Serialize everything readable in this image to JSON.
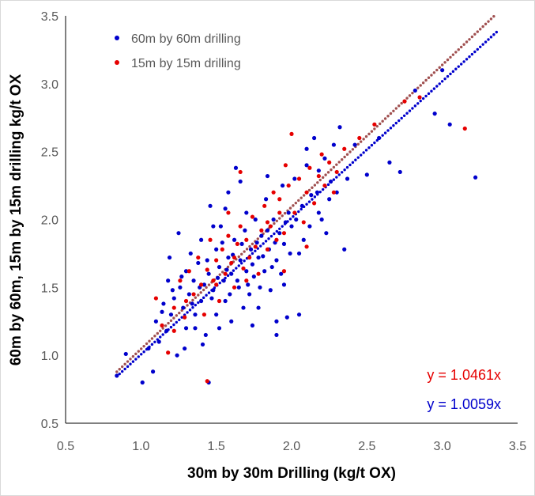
{
  "chart_data": {
    "type": "scatter",
    "xlabel": "30m by 30m Drilling (kg/t OX)",
    "ylabel": "60m by 60m, 15m by 15m drilling kg/t OX",
    "xlim": [
      0.5,
      3.5
    ],
    "ylim": [
      0.5,
      3.5
    ],
    "x_ticks": [
      "0.5",
      "1.0",
      "1.5",
      "2.0",
      "2.5",
      "3.0",
      "3.5"
    ],
    "y_ticks": [
      "0.5",
      "1.0",
      "1.5",
      "2.0",
      "2.5",
      "3.0",
      "3.5"
    ],
    "grid": false,
    "legend_position": "top-left",
    "series": [
      {
        "name": "60m by 60m drilling",
        "color": "#0000cc",
        "points": [
          [
            0.84,
            0.85
          ],
          [
            0.9,
            1.01
          ],
          [
            1.01,
            0.8
          ],
          [
            1.08,
            0.88
          ],
          [
            1.05,
            1.05
          ],
          [
            1.1,
            1.25
          ],
          [
            1.12,
            1.1
          ],
          [
            1.15,
            1.38
          ],
          [
            1.17,
            1.18
          ],
          [
            1.18,
            1.55
          ],
          [
            1.19,
            1.72
          ],
          [
            1.2,
            1.3
          ],
          [
            1.22,
            1.42
          ],
          [
            1.24,
            1.0
          ],
          [
            1.25,
            1.9
          ],
          [
            1.26,
            1.5
          ],
          [
            1.28,
            1.35
          ],
          [
            1.3,
            1.62
          ],
          [
            1.3,
            1.2
          ],
          [
            1.32,
            1.45
          ],
          [
            1.33,
            1.75
          ],
          [
            1.35,
            1.55
          ],
          [
            1.36,
            1.3
          ],
          [
            1.38,
            1.68
          ],
          [
            1.4,
            1.4
          ],
          [
            1.4,
            1.85
          ],
          [
            1.42,
            1.52
          ],
          [
            1.43,
            1.15
          ],
          [
            1.45,
            1.6
          ],
          [
            1.45,
            0.8
          ],
          [
            1.46,
            2.1
          ],
          [
            1.48,
            1.48
          ],
          [
            1.5,
            1.78
          ],
          [
            1.5,
            1.3
          ],
          [
            1.52,
            1.65
          ],
          [
            1.53,
            1.95
          ],
          [
            1.55,
            1.55
          ],
          [
            1.56,
            1.4
          ],
          [
            1.58,
            1.72
          ],
          [
            1.58,
            2.2
          ],
          [
            1.6,
            1.6
          ],
          [
            1.6,
            1.25
          ],
          [
            1.62,
            1.85
          ],
          [
            1.63,
            2.38
          ],
          [
            1.65,
            1.5
          ],
          [
            1.66,
            1.7
          ],
          [
            1.68,
            1.35
          ],
          [
            1.69,
            1.92
          ],
          [
            1.7,
            1.62
          ],
          [
            1.7,
            2.05
          ],
          [
            1.72,
            1.45
          ],
          [
            1.73,
            1.78
          ],
          [
            1.75,
            1.58
          ],
          [
            1.76,
            2.0
          ],
          [
            1.78,
            1.72
          ],
          [
            1.78,
            1.35
          ],
          [
            1.8,
            1.88
          ],
          [
            1.82,
            1.62
          ],
          [
            1.83,
            2.15
          ],
          [
            1.85,
            1.78
          ],
          [
            1.86,
            1.48
          ],
          [
            1.88,
            2.0
          ],
          [
            1.9,
            1.7
          ],
          [
            1.9,
            1.25
          ],
          [
            1.92,
            1.9
          ],
          [
            1.94,
            2.25
          ],
          [
            1.95,
            1.82
          ],
          [
            1.97,
            1.28
          ],
          [
            1.98,
            2.05
          ],
          [
            2.0,
            1.95
          ],
          [
            2.02,
            2.3
          ],
          [
            2.05,
            1.75
          ],
          [
            2.07,
            2.1
          ],
          [
            2.1,
            2.4
          ],
          [
            2.12,
            1.95
          ],
          [
            2.15,
            2.6
          ],
          [
            2.17,
            2.2
          ],
          [
            2.2,
            2.0
          ],
          [
            2.22,
            2.45
          ],
          [
            2.25,
            2.15
          ],
          [
            2.28,
            2.55
          ],
          [
            2.3,
            2.2
          ],
          [
            2.32,
            2.68
          ],
          [
            2.35,
            1.78
          ],
          [
            2.37,
            2.3
          ],
          [
            2.42,
            2.55
          ],
          [
            2.5,
            2.33
          ],
          [
            2.58,
            2.6
          ],
          [
            2.65,
            2.42
          ],
          [
            2.72,
            2.35
          ],
          [
            2.82,
            2.95
          ],
          [
            2.95,
            2.78
          ],
          [
            3.0,
            3.1
          ],
          [
            3.05,
            2.7
          ],
          [
            3.22,
            2.31
          ],
          [
            1.14,
            1.32
          ],
          [
            1.21,
            1.48
          ],
          [
            1.27,
            1.58
          ],
          [
            1.34,
            1.38
          ],
          [
            1.39,
            1.5
          ],
          [
            1.44,
            1.7
          ],
          [
            1.47,
            1.42
          ],
          [
            1.51,
            1.57
          ],
          [
            1.54,
            1.83
          ],
          [
            1.57,
            1.63
          ],
          [
            1.59,
            1.45
          ],
          [
            1.61,
            1.74
          ],
          [
            1.64,
            1.55
          ],
          [
            1.67,
            1.82
          ],
          [
            1.71,
            1.52
          ],
          [
            1.74,
            1.67
          ],
          [
            1.77,
            1.83
          ],
          [
            1.79,
            1.5
          ],
          [
            1.81,
            1.73
          ],
          [
            1.84,
            1.92
          ],
          [
            1.87,
            1.65
          ],
          [
            1.89,
            1.83
          ],
          [
            1.93,
            1.6
          ],
          [
            1.96,
            1.98
          ],
          [
            1.99,
            1.75
          ],
          [
            2.03,
            2.0
          ],
          [
            2.08,
            1.85
          ],
          [
            2.13,
            2.18
          ],
          [
            2.18,
            2.05
          ],
          [
            2.23,
            1.9
          ],
          [
            1.66,
            2.28
          ],
          [
            1.56,
            2.08
          ],
          [
            1.52,
            1.2
          ],
          [
            1.74,
            1.22
          ],
          [
            1.9,
            1.15
          ],
          [
            1.95,
            1.52
          ],
          [
            2.05,
            1.3
          ],
          [
            1.41,
            1.08
          ],
          [
            1.36,
            1.2
          ],
          [
            1.29,
            1.05
          ],
          [
            1.48,
            1.95
          ],
          [
            1.84,
            2.32
          ],
          [
            2.1,
            2.52
          ],
          [
            2.18,
            2.36
          ],
          [
            2.26,
            2.28
          ]
        ]
      },
      {
        "name": "15m by 15m drilling",
        "color": "#e60000",
        "points": [
          [
            1.1,
            1.42
          ],
          [
            1.14,
            1.22
          ],
          [
            1.18,
            1.02
          ],
          [
            1.22,
            1.35
          ],
          [
            1.26,
            1.55
          ],
          [
            1.29,
            1.28
          ],
          [
            1.32,
            1.62
          ],
          [
            1.35,
            1.45
          ],
          [
            1.38,
            1.72
          ],
          [
            1.4,
            1.52
          ],
          [
            1.42,
            1.3
          ],
          [
            1.44,
            1.63
          ],
          [
            1.46,
            1.85
          ],
          [
            1.48,
            1.55
          ],
          [
            1.5,
            1.7
          ],
          [
            1.52,
            1.4
          ],
          [
            1.54,
            1.78
          ],
          [
            1.56,
            1.6
          ],
          [
            1.58,
            1.88
          ],
          [
            1.6,
            1.68
          ],
          [
            1.62,
            1.5
          ],
          [
            1.64,
            1.82
          ],
          [
            1.66,
            1.95
          ],
          [
            1.68,
            1.64
          ],
          [
            1.7,
            1.85
          ],
          [
            1.72,
            1.72
          ],
          [
            1.74,
            2.02
          ],
          [
            1.76,
            1.8
          ],
          [
            1.78,
            1.6
          ],
          [
            1.8,
            1.92
          ],
          [
            1.82,
            2.1
          ],
          [
            1.84,
            1.78
          ],
          [
            1.86,
            1.95
          ],
          [
            1.88,
            2.2
          ],
          [
            1.9,
            1.85
          ],
          [
            1.92,
            2.05
          ],
          [
            1.95,
            1.9
          ],
          [
            1.98,
            2.25
          ],
          [
            2.0,
            2.63
          ],
          [
            2.02,
            2.05
          ],
          [
            2.05,
            2.3
          ],
          [
            2.08,
            1.98
          ],
          [
            2.1,
            2.2
          ],
          [
            2.12,
            2.38
          ],
          [
            2.15,
            2.12
          ],
          [
            2.18,
            2.32
          ],
          [
            2.2,
            2.48
          ],
          [
            2.22,
            2.25
          ],
          [
            2.25,
            2.42
          ],
          [
            2.28,
            2.2
          ],
          [
            2.3,
            2.35
          ],
          [
            2.35,
            2.52
          ],
          [
            2.45,
            2.6
          ],
          [
            2.55,
            2.7
          ],
          [
            2.75,
            2.87
          ],
          [
            2.85,
            2.9
          ],
          [
            3.15,
            2.67
          ],
          [
            1.44,
            0.81
          ],
          [
            1.95,
            1.62
          ],
          [
            2.1,
            1.8
          ],
          [
            1.58,
            2.05
          ],
          [
            1.66,
            2.35
          ],
          [
            1.96,
            2.4
          ],
          [
            1.22,
            1.18
          ],
          [
            1.3,
            1.4
          ],
          [
            1.5,
            1.52
          ],
          [
            1.62,
            1.72
          ],
          [
            1.7,
            1.55
          ],
          [
            1.84,
            1.98
          ],
          [
            1.92,
            2.15
          ]
        ]
      }
    ],
    "trendlines": [
      {
        "series": "15m by 15m drilling",
        "slope": 1.0461,
        "color": "#a05050",
        "x_range": [
          0.84,
          3.36
        ]
      },
      {
        "series": "60m by 60m drilling",
        "slope": 1.0059,
        "color": "#0000cc",
        "x_range": [
          0.84,
          3.36
        ]
      }
    ],
    "annotations": [
      {
        "text": "y = 1.0461x",
        "color": "#e60000"
      },
      {
        "text": "y = 1.0059x",
        "color": "#0000cc"
      }
    ]
  }
}
